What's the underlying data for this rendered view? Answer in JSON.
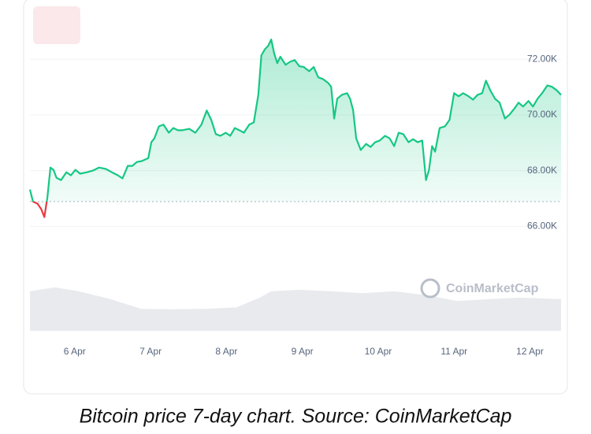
{
  "chart_data": {
    "type": "line",
    "caption": "Bitcoin price 7-day chart. Source: CoinMarketCap",
    "watermark": "CoinMarketCap",
    "series": [
      {
        "color": "#16c784",
        "below_color": "#ea3943",
        "x": [
          5.41,
          5.45,
          5.51,
          5.56,
          5.6,
          5.64,
          5.68,
          5.72,
          5.76,
          5.82,
          5.89,
          5.95,
          6.01,
          6.07,
          6.16,
          6.24,
          6.32,
          6.41,
          6.49,
          6.57,
          6.63,
          6.7,
          6.76,
          6.82,
          6.88,
          6.97,
          7.01,
          7.05,
          7.11,
          7.17,
          7.24,
          7.3,
          7.36,
          7.42,
          7.51,
          7.59,
          7.67,
          7.74,
          7.8,
          7.86,
          7.92,
          7.99,
          8.05,
          8.11,
          8.17,
          8.23,
          8.3,
          8.36,
          8.42,
          8.46,
          8.51,
          8.55,
          8.59,
          8.63,
          8.67,
          8.71,
          8.78,
          8.84,
          8.9,
          8.96,
          9.02,
          9.09,
          9.15,
          9.21,
          9.27,
          9.34,
          9.38,
          9.42,
          9.46,
          9.52,
          9.59,
          9.63,
          9.67,
          9.71,
          9.77,
          9.84,
          9.9,
          9.96,
          10.02,
          10.09,
          10.15,
          10.21,
          10.27,
          10.33,
          10.4,
          10.46,
          10.52,
          10.58,
          10.63,
          10.67,
          10.71,
          10.75,
          10.81,
          10.88,
          10.94,
          11.0,
          11.06,
          11.12,
          11.19,
          11.25,
          11.31,
          11.37,
          11.42,
          11.48,
          11.54,
          11.6,
          11.67,
          11.73,
          11.79,
          11.85,
          11.91,
          11.98,
          12.04,
          12.1,
          12.16,
          12.23,
          12.29,
          12.35,
          12.41
        ],
        "values": [
          67320,
          66890,
          66810,
          66610,
          66330,
          67040,
          68110,
          68030,
          67740,
          67660,
          67940,
          67830,
          68030,
          67890,
          67940,
          68000,
          68110,
          68060,
          67940,
          67830,
          67720,
          68170,
          68170,
          68310,
          68340,
          68450,
          69020,
          69160,
          69590,
          69650,
          69360,
          69530,
          69450,
          69450,
          69500,
          69360,
          69650,
          70160,
          69820,
          69310,
          69250,
          69360,
          69250,
          69530,
          69450,
          69360,
          69650,
          69730,
          70720,
          72140,
          72370,
          72480,
          72710,
          72200,
          71860,
          72090,
          71800,
          71910,
          71970,
          71750,
          71720,
          71570,
          71720,
          71350,
          71290,
          71150,
          71010,
          69870,
          70580,
          70720,
          70780,
          70580,
          70160,
          69160,
          68740,
          68960,
          68850,
          69020,
          69080,
          69250,
          69160,
          68880,
          69360,
          69310,
          69020,
          69130,
          69020,
          69080,
          67660,
          68030,
          68880,
          68680,
          69530,
          69590,
          69820,
          70780,
          70670,
          70780,
          70670,
          70550,
          70720,
          70780,
          71230,
          70870,
          70580,
          70440,
          69870,
          70010,
          70210,
          70440,
          70300,
          70500,
          70300,
          70580,
          70780,
          71060,
          71010,
          70890,
          70720
        ]
      }
    ],
    "baseline": 66890,
    "volume": {
      "color": "#e8eaee",
      "lim": [
        0,
        100
      ],
      "x": [
        5.41,
        5.74,
        6.05,
        6.47,
        6.88,
        7.3,
        7.72,
        8.13,
        8.44,
        8.59,
        8.96,
        9.38,
        9.79,
        10.21,
        10.63,
        11.04,
        11.46,
        11.87,
        12.41
      ],
      "values": [
        81,
        89,
        81,
        65,
        45,
        44,
        45,
        48,
        68,
        81,
        84,
        81,
        77,
        81,
        73,
        61,
        65,
        68,
        65
      ]
    },
    "xlim": [
      5.41,
      12.41
    ],
    "xticks": [
      {
        "value": 6,
        "label": "6 Apr"
      },
      {
        "value": 7,
        "label": "7 Apr"
      },
      {
        "value": 8,
        "label": "8 Apr"
      },
      {
        "value": 9,
        "label": "9 Apr"
      },
      {
        "value": 10,
        "label": "10 Apr"
      },
      {
        "value": 11,
        "label": "11 Apr"
      },
      {
        "value": 12,
        "label": "12 Apr"
      }
    ],
    "ylim": [
      64000,
      74000
    ],
    "yticks": [
      {
        "value": 66000,
        "label": "66.00K"
      },
      {
        "value": 68000,
        "label": "68.00K"
      },
      {
        "value": 70000,
        "label": "70.00K"
      },
      {
        "value": 72000,
        "label": "72.00K"
      }
    ],
    "grid": true
  }
}
